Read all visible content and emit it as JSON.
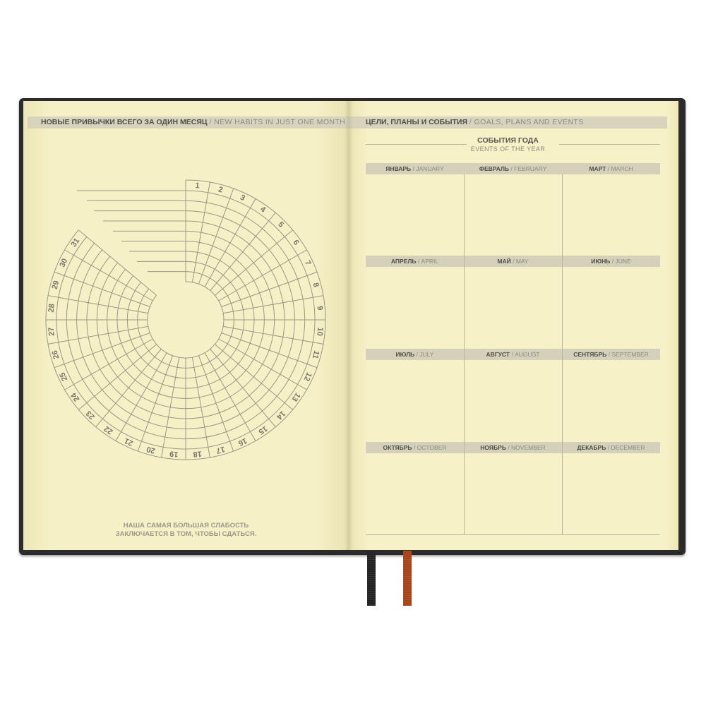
{
  "left_page": {
    "header_ru": "НОВЫЕ ПРИВЫЧКИ ВСЕГО ЗА ОДИН МЕСЯЦ",
    "header_en": "/ NEW HABITS IN JUST ONE MONTH",
    "tracker_days": [
      "1",
      "2",
      "3",
      "4",
      "5",
      "6",
      "7",
      "8",
      "9",
      "10",
      "11",
      "12",
      "13",
      "14",
      "15",
      "16",
      "17",
      "18",
      "19",
      "20",
      "21",
      "22",
      "23",
      "24",
      "25",
      "26",
      "27",
      "28",
      "29",
      "30",
      "31"
    ],
    "quote_line1": "НАША САМАЯ БОЛЬШАЯ СЛАБОСТЬ",
    "quote_line2": "ЗАКЛЮЧАЕТСЯ В ТОМ, ЧТОБЫ СДАТЬСЯ."
  },
  "right_page": {
    "header_ru": "ЦЕЛИ, ПЛАНЫ И СОБЫТИЯ",
    "header_en": "/ GOALS, PLANS AND EVENTS",
    "title_ru": "СОБЫТИЯ ГОДА",
    "title_en": "EVENTS OF THE YEAR",
    "months": [
      {
        "ru": "ЯНВАРЬ",
        "en": "/ JANUARY"
      },
      {
        "ru": "ФЕВРАЛЬ",
        "en": "/ FEBRUARY"
      },
      {
        "ru": "МАРТ",
        "en": "/ MARCH"
      },
      {
        "ru": "АПРЕЛЬ",
        "en": "/ APRIL"
      },
      {
        "ru": "МАЙ",
        "en": "/ MAY"
      },
      {
        "ru": "ИЮНЬ",
        "en": "/ JUNE"
      },
      {
        "ru": "ИЮЛЬ",
        "en": "/ JULY"
      },
      {
        "ru": "АВГУСТ",
        "en": "/ AUGUST"
      },
      {
        "ru": "СЕНТЯБРЬ",
        "en": "/ SEPTEMBER"
      },
      {
        "ru": "ОКТЯБРЬ",
        "en": "/ OCTOBER"
      },
      {
        "ru": "НОЯБРЬ",
        "en": "/ NOVEMBER"
      },
      {
        "ru": "ДЕКАБРЬ",
        "en": "/ DECEMBER"
      }
    ]
  },
  "colors": {
    "cover": "#2b2b2b",
    "paper": "#f5efc3",
    "bar": "#d7d3bd",
    "ribbon_black": "#222222",
    "ribbon_orange": "#a84318"
  }
}
